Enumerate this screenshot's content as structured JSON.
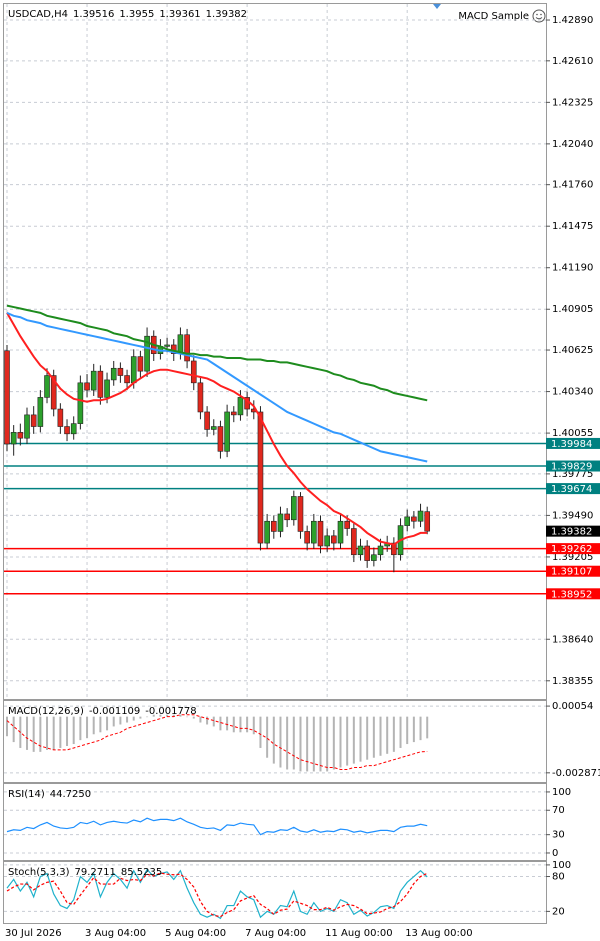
{
  "chart_data": [
    {
      "type": "candlestick",
      "title": "USDCAD,H4",
      "expert": "MACD Sample",
      "categories": [
        "30 Jul 2026",
        null,
        null,
        null,
        null,
        null,
        null,
        null,
        null,
        null,
        null,
        null,
        "3 Aug 04:00",
        null,
        null,
        null,
        null,
        null,
        null,
        null,
        null,
        null,
        null,
        null,
        "5 Aug 04:00",
        null,
        null,
        null,
        null,
        null,
        null,
        null,
        null,
        null,
        null,
        null,
        "7 Aug 04:00",
        null,
        null,
        null,
        null,
        null,
        null,
        null,
        null,
        null,
        null,
        null,
        "11 Aug 00:00",
        null,
        null,
        null,
        null,
        null,
        null,
        null,
        null,
        null,
        null,
        null,
        "13 Aug 00:00",
        null,
        null,
        null
      ],
      "open": [
        1.4062,
        1.3998,
        1.4006,
        1.4002,
        1.4018,
        1.401,
        1.403,
        1.4045,
        1.4022,
        1.401,
        1.4005,
        1.4012,
        1.404,
        1.4035,
        1.4048,
        1.403,
        1.4042,
        1.405,
        1.4045,
        1.404,
        1.4058,
        1.4048,
        1.4072,
        1.406,
        1.4065,
        1.4066,
        1.406,
        1.4073,
        1.4055,
        1.404,
        1.402,
        1.4008,
        1.401,
        1.3993,
        1.402,
        1.4018,
        1.403,
        1.4022,
        1.402,
        1.393,
        1.3945,
        1.3938,
        1.395,
        1.3946,
        1.3962,
        1.3938,
        1.393,
        1.3945,
        1.3928,
        1.3935,
        1.393,
        1.3945,
        1.394,
        1.3922,
        1.3928,
        1.3918,
        1.3922,
        1.3928,
        1.393,
        1.3922,
        1.3942,
        1.3948,
        1.3945,
        1.39516
      ],
      "high": [
        1.4066,
        1.4011,
        1.4012,
        1.4023,
        1.4024,
        1.4035,
        1.405,
        1.4049,
        1.4026,
        1.4015,
        1.4017,
        1.4045,
        1.4046,
        1.4053,
        1.4052,
        1.4047,
        1.4055,
        1.4054,
        1.4049,
        1.4063,
        1.4062,
        1.4078,
        1.4076,
        1.407,
        1.4071,
        1.407,
        1.4078,
        1.4077,
        1.4059,
        1.4044,
        1.4024,
        1.4015,
        1.4014,
        1.4025,
        1.4024,
        1.4035,
        1.4034,
        1.4028,
        1.4024,
        1.395,
        1.3949,
        1.3955,
        1.3954,
        1.3966,
        1.3965,
        1.3942,
        1.395,
        1.3949,
        1.394,
        1.3939,
        1.395,
        1.3949,
        1.3944,
        1.3933,
        1.3932,
        1.3927,
        1.3933,
        1.3935,
        1.3934,
        1.3947,
        1.3953,
        1.3952,
        1.3957,
        1.3955
      ],
      "low": [
        1.3993,
        1.399,
        1.3997,
        1.3998,
        1.4005,
        1.4006,
        1.4026,
        1.4017,
        1.4005,
        1.4,
        1.4001,
        1.4008,
        1.403,
        1.4031,
        1.4025,
        1.4026,
        1.4038,
        1.404,
        1.4035,
        1.4036,
        1.4043,
        1.4044,
        1.4055,
        1.4056,
        1.4061,
        1.4055,
        1.4056,
        1.405,
        1.4035,
        1.4015,
        1.4003,
        1.4004,
        1.3988,
        1.3989,
        1.4013,
        1.4014,
        1.4017,
        1.4015,
        1.3925,
        1.3926,
        1.3933,
        1.3934,
        1.3941,
        1.3942,
        1.3933,
        1.3925,
        1.3926,
        1.3923,
        1.3924,
        1.3925,
        1.3926,
        1.3935,
        1.3917,
        1.3918,
        1.3913,
        1.3914,
        1.3918,
        1.3924,
        1.391,
        1.3918,
        1.3938,
        1.394,
        1.3941,
        1.39361
      ],
      "close": [
        1.3998,
        1.4006,
        1.4002,
        1.4018,
        1.401,
        1.403,
        1.4045,
        1.4022,
        1.401,
        1.4005,
        1.4012,
        1.404,
        1.4035,
        1.4048,
        1.403,
        1.4042,
        1.405,
        1.4045,
        1.404,
        1.4058,
        1.4048,
        1.4072,
        1.406,
        1.4065,
        1.4066,
        1.406,
        1.4073,
        1.4055,
        1.404,
        1.402,
        1.4008,
        1.401,
        1.3993,
        1.402,
        1.4018,
        1.403,
        1.4022,
        1.402,
        1.393,
        1.3945,
        1.3938,
        1.395,
        1.3946,
        1.3962,
        1.3938,
        1.393,
        1.3945,
        1.3928,
        1.3935,
        1.393,
        1.3945,
        1.394,
        1.3922,
        1.3928,
        1.3918,
        1.3922,
        1.3928,
        1.393,
        1.3922,
        1.3942,
        1.3948,
        1.3945,
        1.3952,
        1.39382
      ],
      "up_color": "#2ca02c",
      "down_color": "#e0281e",
      "series": [
        {
          "color": "#ff2020",
          "values": [
            1.4088,
            1.408,
            1.4072,
            1.4065,
            1.4058,
            1.4052,
            1.4048,
            1.4042,
            1.4036,
            1.4032,
            1.4029,
            1.4028,
            1.4027,
            1.4028,
            1.4028,
            1.4029,
            1.4031,
            1.4033,
            1.4036,
            1.404,
            1.4043,
            1.4046,
            1.4048,
            1.4049,
            1.4049,
            1.4048,
            1.4047,
            1.4046,
            1.4045,
            1.4044,
            1.4043,
            1.4041,
            1.4038,
            1.4036,
            1.4034,
            1.4031,
            1.4028,
            1.4024,
            1.4016,
            1.4007,
            1.3998,
            1.399,
            1.3983,
            1.3978,
            1.3972,
            1.3967,
            1.3963,
            1.3959,
            1.3956,
            1.3952,
            1.395,
            1.3947,
            1.3944,
            1.3941,
            1.3937,
            1.3934,
            1.3931,
            1.393,
            1.3929,
            1.3932,
            1.3934,
            1.3935,
            1.3937,
            1.3937
          ]
        },
        {
          "color": "#3399ff",
          "values": [
            1.4088,
            1.4086,
            1.4085,
            1.4083,
            1.4082,
            1.4081,
            1.4079,
            1.4078,
            1.4077,
            1.4076,
            1.4075,
            1.4074,
            1.4073,
            1.4072,
            1.4071,
            1.407,
            1.4069,
            1.4068,
            1.4067,
            1.4066,
            1.4065,
            1.4064,
            1.4063,
            1.4062,
            1.4062,
            1.4061,
            1.406,
            1.4059,
            1.4058,
            1.4057,
            1.4056,
            1.4053,
            1.405,
            1.4047,
            1.4044,
            1.4041,
            1.4038,
            1.4035,
            1.4032,
            1.4029,
            1.4026,
            1.4023,
            1.402,
            1.4018,
            1.4016,
            1.4014,
            1.4012,
            1.401,
            1.4008,
            1.4006,
            1.4005,
            1.4003,
            1.4001,
            1.3999,
            1.3997,
            1.3995,
            1.3993,
            1.3992,
            1.3991,
            1.399,
            1.3989,
            1.3988,
            1.3987,
            1.3986
          ]
        },
        {
          "color": "#1e8c1e",
          "values": [
            1.4093,
            1.4092,
            1.4091,
            1.409,
            1.4089,
            1.4088,
            1.4086,
            1.4085,
            1.4084,
            1.4083,
            1.4082,
            1.4081,
            1.4079,
            1.4078,
            1.4077,
            1.4076,
            1.4074,
            1.4073,
            1.4072,
            1.407,
            1.4069,
            1.4068,
            1.4066,
            1.4065,
            1.4063,
            1.4062,
            1.4061,
            1.406,
            1.406,
            1.4059,
            1.4059,
            1.4058,
            1.4058,
            1.4057,
            1.4057,
            1.4057,
            1.4056,
            1.4056,
            1.4056,
            1.4055,
            1.4055,
            1.4054,
            1.4054,
            1.4053,
            1.4052,
            1.4051,
            1.405,
            1.4049,
            1.4048,
            1.4046,
            1.4045,
            1.4043,
            1.4042,
            1.404,
            1.4039,
            1.4038,
            1.4036,
            1.4035,
            1.4033,
            1.4032,
            1.4031,
            1.403,
            1.4029,
            1.4028
          ]
        }
      ],
      "levels": [
        {
          "value": 1.39984,
          "color": "#008080"
        },
        {
          "value": 1.39829,
          "color": "#008080"
        },
        {
          "value": 1.39674,
          "color": "#008080"
        },
        {
          "value": 1.39262,
          "color": "#ff0000"
        },
        {
          "value": 1.39107,
          "color": "#ff0000"
        },
        {
          "value": 1.38952,
          "color": "#ff0000"
        }
      ],
      "ylim": [
        1.3823,
        1.43
      ],
      "yticks": [
        {
          "value": 1.4289,
          "label": "1.42890"
        },
        {
          "value": 1.4261,
          "label": "1.42610"
        },
        1.42325,
        {
          "value": 1.4204,
          "label": "1.42040"
        },
        {
          "value": 1.4176,
          "label": "1.41760"
        },
        1.41475,
        {
          "value": 1.4119,
          "label": "1.41190"
        },
        1.40905,
        1.40625,
        {
          "value": 1.4034,
          "label": "1.40340"
        },
        1.40055,
        1.39775,
        {
          "value": 1.3949,
          "label": "1.39490"
        },
        1.39205,
        {
          "value": 1.3864,
          "label": "1.38640"
        },
        1.38355
      ],
      "grid": true
    },
    {
      "type": "macd",
      "title": "MACD(12,26,9)",
      "series": [
        {
          "color": "#b4b4b4",
          "style": "histogram",
          "values": [
            -0.001,
            -0.0013,
            -0.0016,
            -0.0017,
            -0.0018,
            -0.0018,
            -0.0017,
            -0.0017,
            -0.0016,
            -0.0015,
            -0.0014,
            -0.0012,
            -0.0011,
            -0.0009,
            -0.0008,
            -0.0007,
            -0.0005,
            -0.0004,
            -0.0003,
            -0.0002,
            -0.0001,
            0,
            0.0001,
            0.0001,
            0.0001,
            0.0001,
            0.0001,
            0,
            -0.0001,
            -0.0003,
            -0.0004,
            -0.0005,
            -0.0007,
            -0.0007,
            -0.0008,
            -0.0008,
            -0.0008,
            -0.0009,
            -0.0016,
            -0.0021,
            -0.0024,
            -0.0026,
            -0.0027,
            -0.0027,
            -0.0028,
            -0.0028,
            -0.0028,
            -0.0028,
            -0.0028,
            -0.0027,
            -0.0026,
            -0.0025,
            -0.0024,
            -0.0023,
            -0.0022,
            -0.0021,
            -0.002,
            -0.0019,
            -0.0018,
            -0.0016,
            -0.0014,
            -0.0013,
            -0.0012,
            -0.001109
          ]
        },
        {
          "color": "#ff0000",
          "style": "dashed",
          "values": [
            -0.0002,
            -0.0005,
            -0.0008,
            -0.0011,
            -0.0013,
            -0.0015,
            -0.0016,
            -0.0017,
            -0.0017,
            -0.0017,
            -0.0016,
            -0.0015,
            -0.0014,
            -0.0013,
            -0.0012,
            -0.001,
            -0.0009,
            -0.0008,
            -0.0006,
            -0.0005,
            -0.0004,
            -0.0003,
            -0.0002,
            -0.0001,
            0,
            0,
            0.0001,
            0.0001,
            0.0001,
            0,
            -0.0001,
            -0.0002,
            -0.0003,
            -0.0004,
            -0.0005,
            -0.0006,
            -0.0006,
            -0.0007,
            -0.0009,
            -0.0011,
            -0.0014,
            -0.0016,
            -0.0018,
            -0.002,
            -0.0022,
            -0.0023,
            -0.0024,
            -0.0025,
            -0.0026,
            -0.0026,
            -0.0027,
            -0.0027,
            -0.0026,
            -0.0026,
            -0.0025,
            -0.0025,
            -0.0024,
            -0.0023,
            -0.0022,
            -0.0021,
            -0.002,
            -0.0019,
            -0.0018,
            -0.001778
          ]
        }
      ],
      "ylim": [
        -0.00334,
        0.0008
      ],
      "yticks": [
        0.00054,
        -0.002871
      ]
    },
    {
      "type": "line",
      "title": "RSI(14)",
      "series": [
        {
          "color": "#1e90ff",
          "values": [
            35,
            38,
            37,
            42,
            40,
            46,
            50,
            44,
            41,
            40,
            42,
            50,
            48,
            52,
            46,
            50,
            52,
            50,
            49,
            54,
            51,
            57,
            53,
            55,
            55,
            53,
            57,
            51,
            47,
            42,
            40,
            41,
            37,
            46,
            45,
            49,
            47,
            46,
            30,
            35,
            34,
            38,
            37,
            42,
            36,
            34,
            38,
            34,
            36,
            35,
            39,
            38,
            34,
            36,
            33,
            35,
            37,
            37,
            35,
            42,
            44,
            44,
            47,
            44.725
          ],
          "value_labels": [
            null,
            null,
            null,
            null,
            null,
            null,
            null,
            null,
            null,
            null,
            null,
            null,
            null,
            null,
            null,
            null,
            null,
            null,
            null,
            null,
            null,
            null,
            null,
            null,
            null,
            null,
            null,
            null,
            null,
            null,
            null,
            null,
            null,
            null,
            null,
            null,
            null,
            null,
            null,
            null,
            null,
            null,
            null,
            null,
            null,
            null,
            null,
            null,
            null,
            null,
            null,
            null,
            null,
            null,
            null,
            null,
            null,
            null,
            null,
            null,
            null,
            null,
            null,
            "44.7250"
          ]
        }
      ],
      "ylim": [
        -11.5,
        113
      ],
      "yticks": [
        100,
        70,
        30,
        0
      ]
    },
    {
      "type": "line",
      "title": "Stoch(5,3,3)",
      "series": [
        {
          "color": "#20b2cc",
          "values": [
            60,
            75,
            55,
            70,
            45,
            80,
            85,
            50,
            30,
            25,
            40,
            80,
            70,
            85,
            45,
            70,
            85,
            75,
            60,
            90,
            70,
            92,
            80,
            85,
            88,
            75,
            90,
            60,
            35,
            15,
            10,
            15,
            8,
            30,
            30,
            55,
            45,
            40,
            10,
            20,
            15,
            30,
            28,
            55,
            20,
            15,
            35,
            20,
            25,
            20,
            40,
            35,
            15,
            22,
            12,
            18,
            28,
            30,
            25,
            55,
            70,
            80,
            90,
            79.2711
          ]
        },
        {
          "color": "#ff0000",
          "style": "dashed",
          "values": [
            55,
            62,
            67,
            67,
            57,
            65,
            70,
            72,
            55,
            35,
            32,
            48,
            63,
            78,
            67,
            67,
            67,
            77,
            73,
            75,
            73,
            84,
            81,
            86,
            84,
            83,
            84,
            75,
            62,
            37,
            20,
            13,
            11,
            18,
            23,
            38,
            43,
            47,
            32,
            25,
            15,
            22,
            24,
            38,
            34,
            30,
            23,
            23,
            27,
            22,
            28,
            32,
            30,
            24,
            16,
            17,
            19,
            25,
            28,
            37,
            50,
            68,
            80,
            85.5235
          ]
        }
      ],
      "ylim": [
        0,
        105
      ],
      "yticks": [
        100,
        80,
        20
      ]
    }
  ]
}
